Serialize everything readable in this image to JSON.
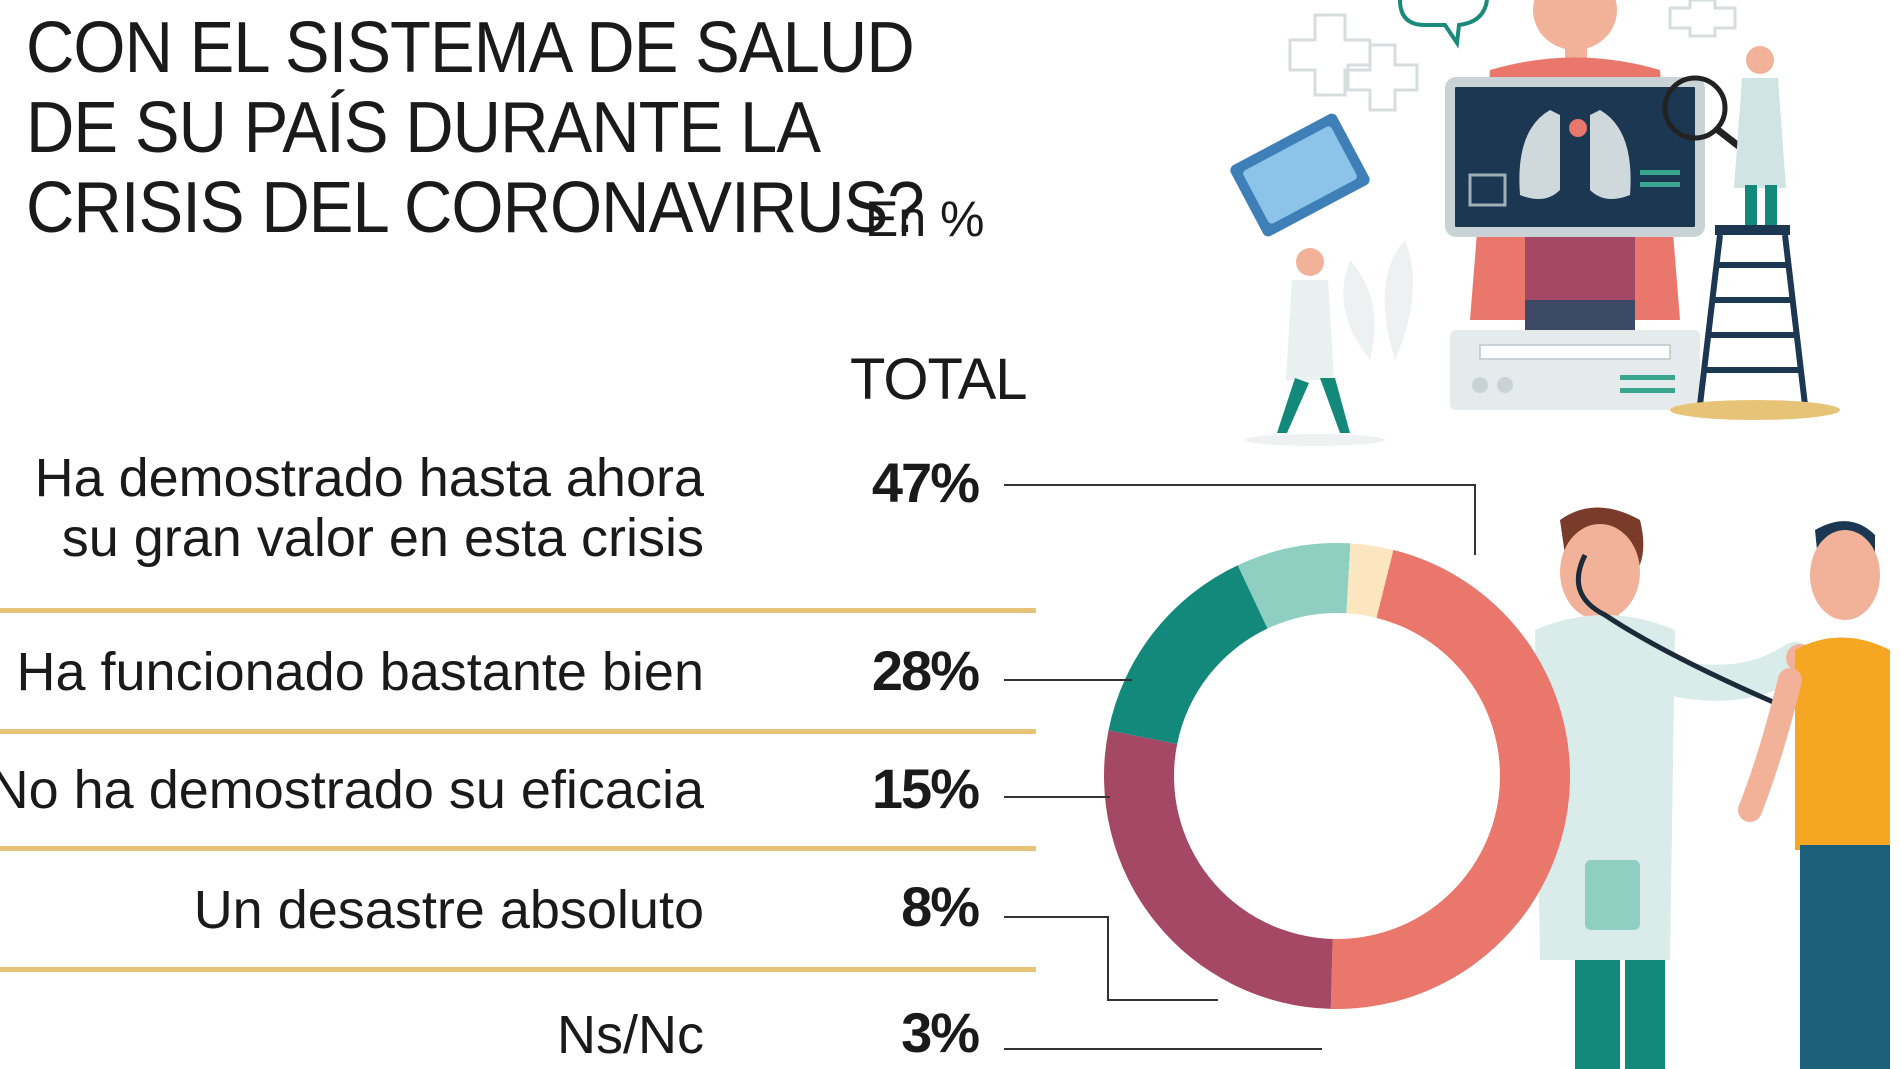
{
  "title_lines": [
    "CON EL SISTEMA DE SALUD",
    "DE SU PAÍS DURANTE LA",
    "CRISIS DEL CORONAVIRUS?"
  ],
  "unit": "En %",
  "column_header": "TOTAL",
  "colors": {
    "separator": "#e6c377",
    "leader": "#333333"
  },
  "chart_data": {
    "type": "pie",
    "title": "CON EL SISTEMA DE SALUD DE SU PAÍS DURANTE LA CRISIS DEL CORONAVIRUS?",
    "unit": "En %",
    "series_name": "TOTAL",
    "categories": [
      "Ha demostrado hasta ahora su gran valor en esta crisis",
      "Ha funcionado bastante bien",
      "No ha demostrado su eficacia",
      "Un desastre absoluto",
      "Ns/Nc"
    ],
    "values": [
      47,
      28,
      15,
      8,
      3
    ],
    "value_labels": [
      "47%",
      "28%",
      "15%",
      "8%",
      "3%"
    ],
    "label_lines": [
      [
        "Ha demostrado hasta ahora",
        "su gran valor en esta crisis"
      ],
      [
        "Ha funcionado bastante bien"
      ],
      [
        "No ha demostrado su eficacia"
      ],
      [
        "Un desastre absoluto"
      ],
      [
        "Ns/Nc"
      ]
    ],
    "colors": [
      "#e9776b",
      "#a44866",
      "#12897b",
      "#8fcfc1",
      "#fbe6c0"
    ],
    "donut": true,
    "legend": "left"
  },
  "illustrations": [
    "doctors-xray-illustration",
    "doctor-patient-illustration"
  ]
}
